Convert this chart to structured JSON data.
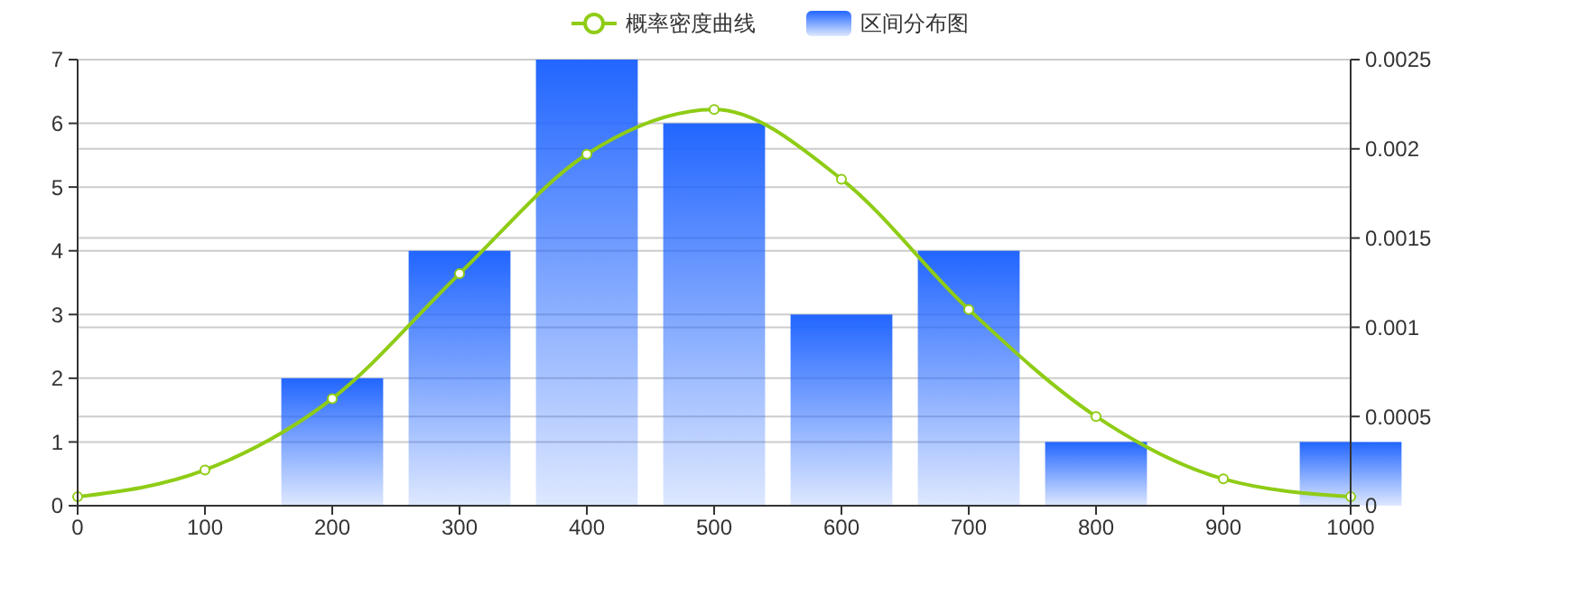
{
  "chart_data": {
    "type": "bar",
    "x": [
      200,
      300,
      400,
      500,
      600,
      700,
      800,
      900,
      1000
    ],
    "series": [
      {
        "name": "概率密度曲线",
        "type": "line",
        "axis": "y2",
        "color": "#8fcc16",
        "marker": "circle",
        "x": [
          0,
          100,
          200,
          300,
          400,
          500,
          600,
          700,
          800,
          900,
          1000
        ],
        "values": [
          5e-05,
          0.0002,
          0.0006,
          0.0013,
          0.00197,
          0.00222,
          0.00183,
          0.0011,
          0.0005,
          0.00015,
          5e-05
        ]
      },
      {
        "name": "区间分布图",
        "color": "#2266ff",
        "values": [
          2,
          4,
          7,
          6,
          3,
          4,
          1,
          0,
          1
        ]
      }
    ],
    "xlim": [
      0,
      1000
    ],
    "xticks": [
      0,
      100,
      200,
      300,
      400,
      500,
      600,
      700,
      800,
      900,
      1000
    ],
    "ylim": [
      0,
      7
    ],
    "yticks": [
      0,
      1,
      2,
      3,
      4,
      5,
      6,
      7
    ],
    "y2lim": [
      0,
      0.0025
    ],
    "y2ticks": [
      0,
      0.0005,
      0.001,
      0.0015,
      0.002,
      0.0025
    ],
    "grid": true,
    "legend": "top"
  }
}
